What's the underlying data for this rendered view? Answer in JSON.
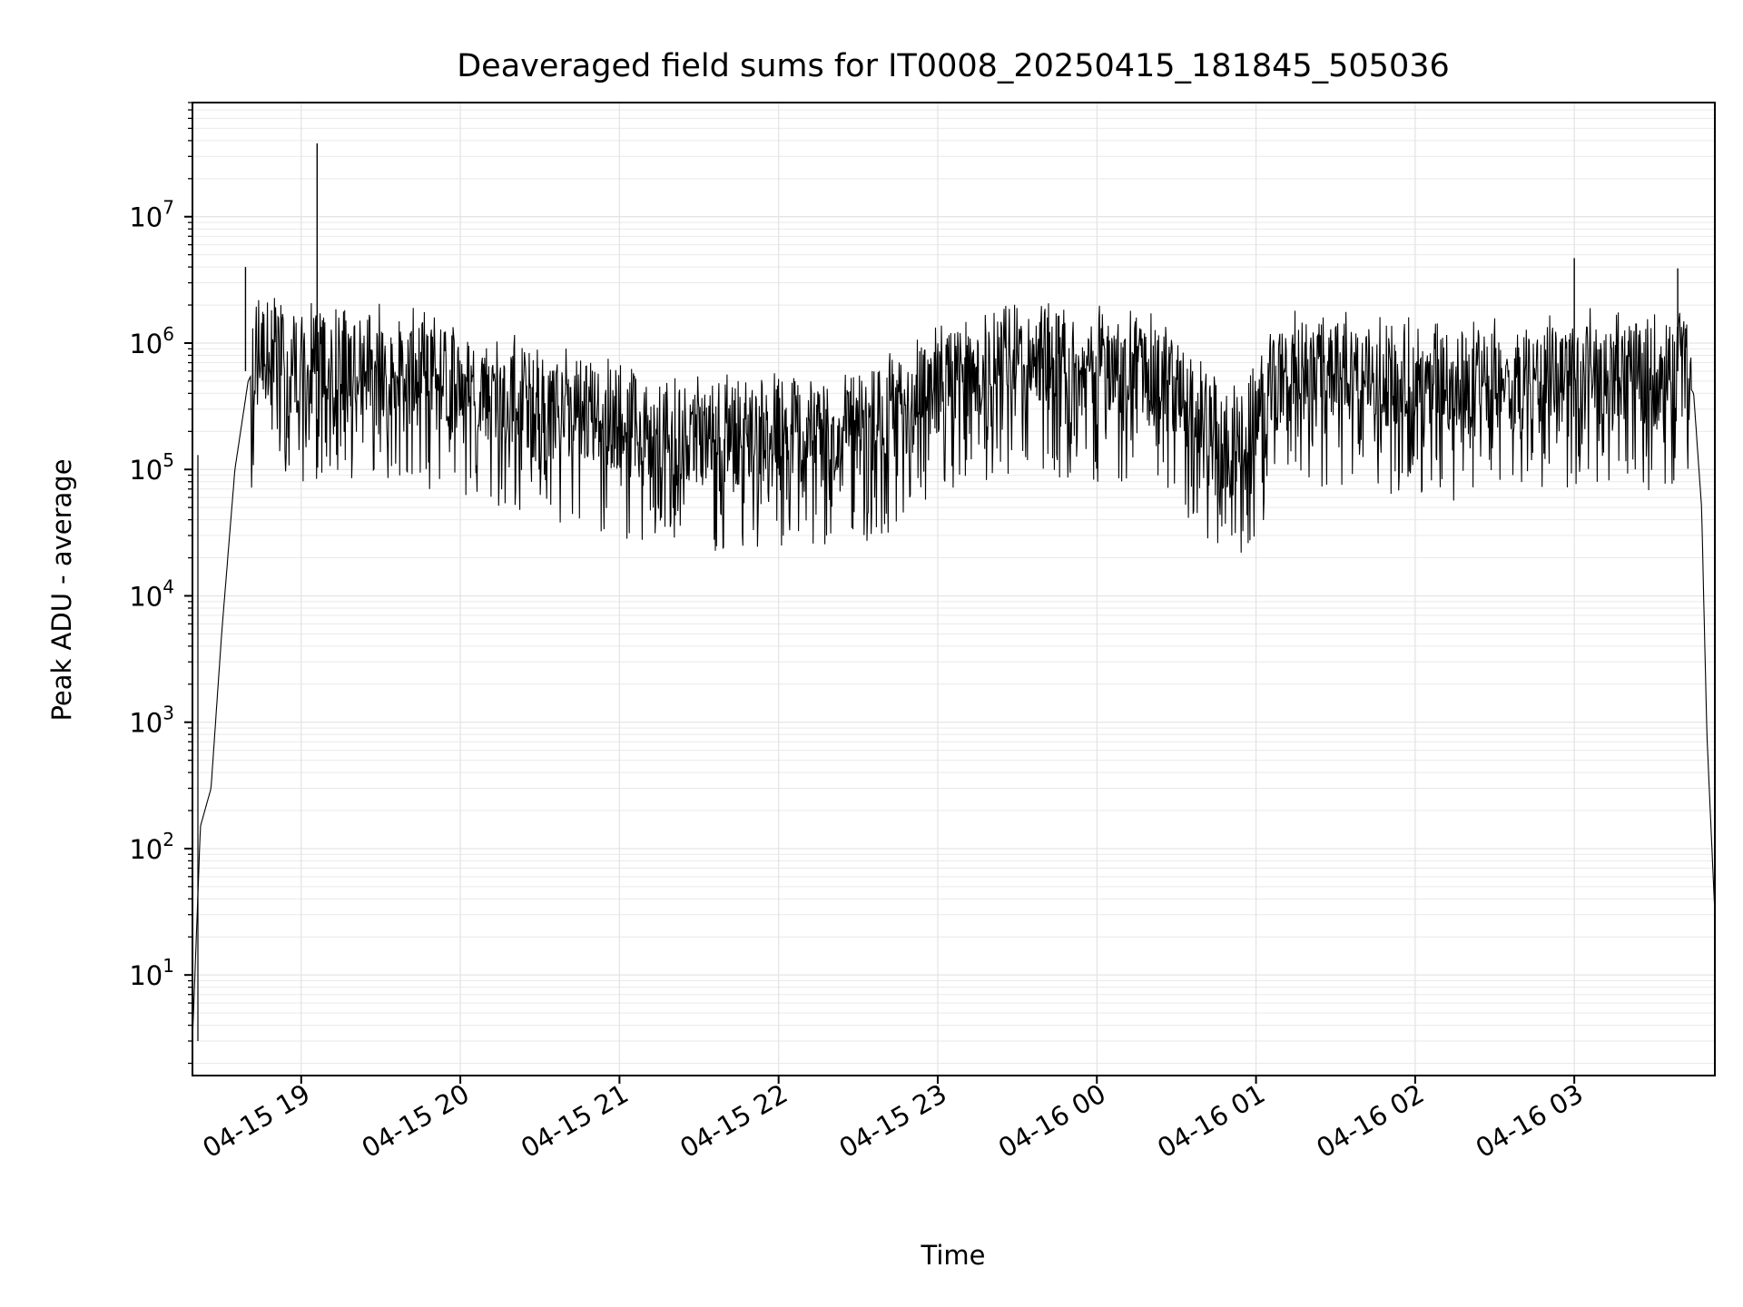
{
  "chart_data": {
    "type": "line",
    "title": "Deaveraged field sums for IT0008_20250415_181845_505036",
    "xlabel": "Time",
    "ylabel": "Peak ADU - average",
    "yscale": "log",
    "x_range": [
      "2025-04-15 18:19",
      "2025-04-16 03:53"
    ],
    "ylim": [
      1.6,
      80000000
    ],
    "grid": true,
    "line_color": "#000000",
    "x_ticks": [
      "04-15 19",
      "04-15 20",
      "04-15 21",
      "04-15 22",
      "04-15 23",
      "04-16 00",
      "04-16 01",
      "04-16 02",
      "04-16 03"
    ],
    "y_ticks": [
      {
        "base": "10",
        "exp": "1",
        "value": 10
      },
      {
        "base": "10",
        "exp": "2",
        "value": 100
      },
      {
        "base": "10",
        "exp": "3",
        "value": 1000
      },
      {
        "base": "10",
        "exp": "4",
        "value": 10000
      },
      {
        "base": "10",
        "exp": "5",
        "value": 100000
      },
      {
        "base": "10",
        "exp": "6",
        "value": 1000000
      },
      {
        "base": "10",
        "exp": "7",
        "value": 10000000
      }
    ],
    "series": [
      {
        "x": [
          "2025-04-15 18:19",
          "2025-04-15 18:22",
          "2025-04-15 18:26",
          "2025-04-15 18:30",
          "2025-04-15 18:35",
          "2025-04-15 18:40",
          "2025-04-15 18:45",
          "2025-04-15 18:50",
          "2025-04-15 19:00",
          "2025-04-15 19:10",
          "2025-04-15 19:30",
          "2025-04-15 19:50",
          "2025-04-15 20:10",
          "2025-04-15 20:30",
          "2025-04-15 20:50",
          "2025-04-15 21:10",
          "2025-04-15 21:30",
          "2025-04-15 21:50",
          "2025-04-15 22:10",
          "2025-04-15 22:30",
          "2025-04-15 22:50",
          "2025-04-15 23:10",
          "2025-04-15 23:30",
          "2025-04-15 23:50",
          "2025-04-16 00:10",
          "2025-04-16 00:30",
          "2025-04-16 00:50",
          "2025-04-16 01:10",
          "2025-04-16 01:30",
          "2025-04-16 01:50",
          "2025-04-16 02:10",
          "2025-04-16 02:30",
          "2025-04-16 02:50",
          "2025-04-16 03:10",
          "2025-04-16 03:30",
          "2025-04-16 03:40",
          "2025-04-16 03:45",
          "2025-04-16 03:48",
          "2025-04-16 03:50",
          "2025-04-16 03:53"
        ],
        "y": [
          3,
          150,
          300,
          5000,
          100000,
          500000,
          800000,
          900000,
          600000,
          700000,
          600000,
          500000,
          400000,
          300000,
          250000,
          200000,
          180000,
          170000,
          180000,
          200000,
          300000,
          500000,
          600000,
          650000,
          600000,
          400000,
          120000,
          500000,
          550000,
          500000,
          450000,
          450000,
          500000,
          550000,
          500000,
          600000,
          400000,
          50000,
          800,
          30
        ]
      }
    ],
    "peaks": [
      {
        "x": "2025-04-15 19:06",
        "y": 38000000
      },
      {
        "x": "2025-04-15 18:39",
        "y": 4000000
      },
      {
        "x": "2025-04-16 03:00",
        "y": 4700000
      },
      {
        "x": "2025-04-16 03:39",
        "y": 3900000
      }
    ]
  }
}
